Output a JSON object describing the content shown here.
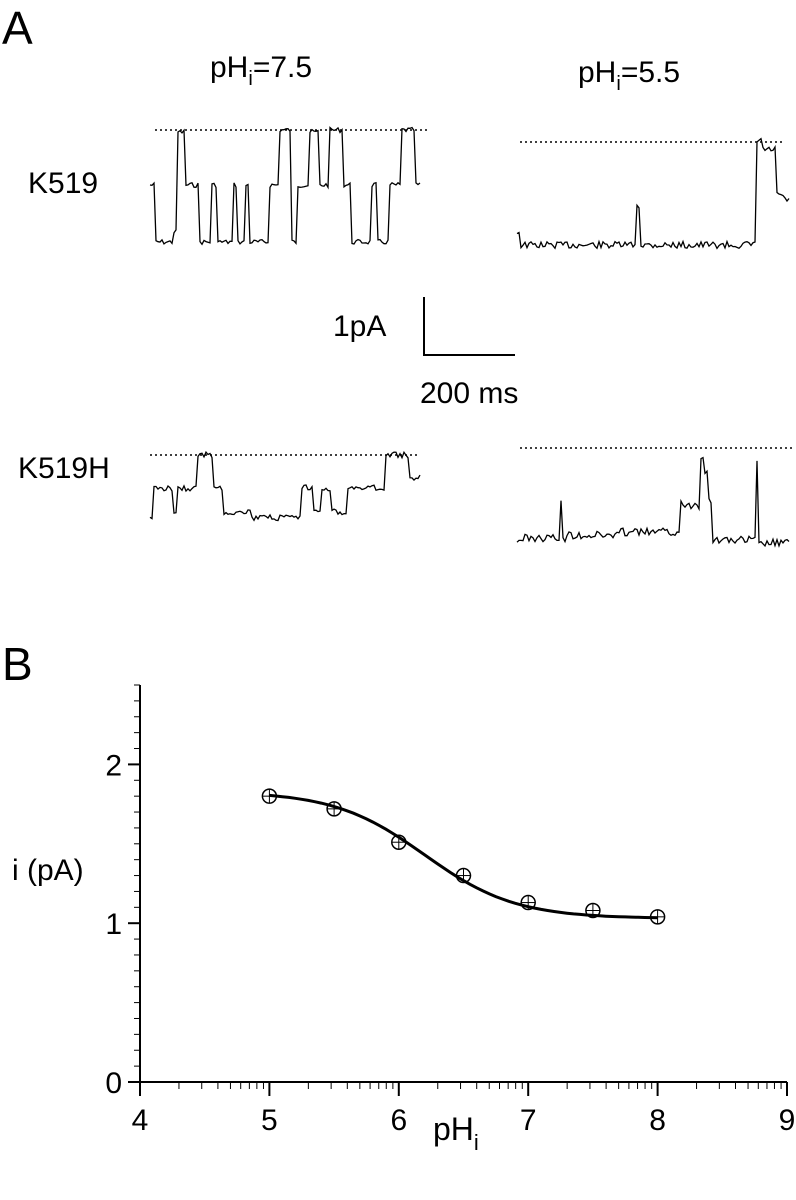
{
  "panel_a": {
    "label": "A",
    "col_titles": [
      {
        "main": "pH",
        "sub": "i",
        "tail": "=7.5"
      },
      {
        "main": "pH",
        "sub": "i",
        "tail": "=5.5"
      }
    ],
    "row_labels": [
      "K519",
      "K519H"
    ],
    "scale_bar": {
      "current_label": "1pA",
      "time_label": "200 ms"
    }
  },
  "panel_b": {
    "label": "B"
  },
  "chart_data": {
    "type": "scatter",
    "title": "",
    "xlabel": "pH",
    "xlabel_sub": "i",
    "ylabel": "i (pA)",
    "xlim": [
      4,
      9
    ],
    "ylim": [
      0,
      2.5
    ],
    "x_ticks": [
      "4",
      "5",
      "6",
      "7",
      "8",
      "9"
    ],
    "y_ticks": [
      "0",
      "1",
      "2"
    ],
    "x_tick_values": [
      4,
      5,
      6,
      7,
      8,
      9
    ],
    "y_tick_values": [
      0,
      1,
      2
    ],
    "series": [
      {
        "x": [
          5.0,
          5.5,
          6.0,
          6.5,
          7.0,
          7.5,
          8.0
        ],
        "y": [
          1.8,
          1.72,
          1.51,
          1.3,
          1.13,
          1.08,
          1.04
        ],
        "marker": "crossed-circle",
        "fit": "sigmoid"
      }
    ],
    "grid": false,
    "legend": "none"
  }
}
